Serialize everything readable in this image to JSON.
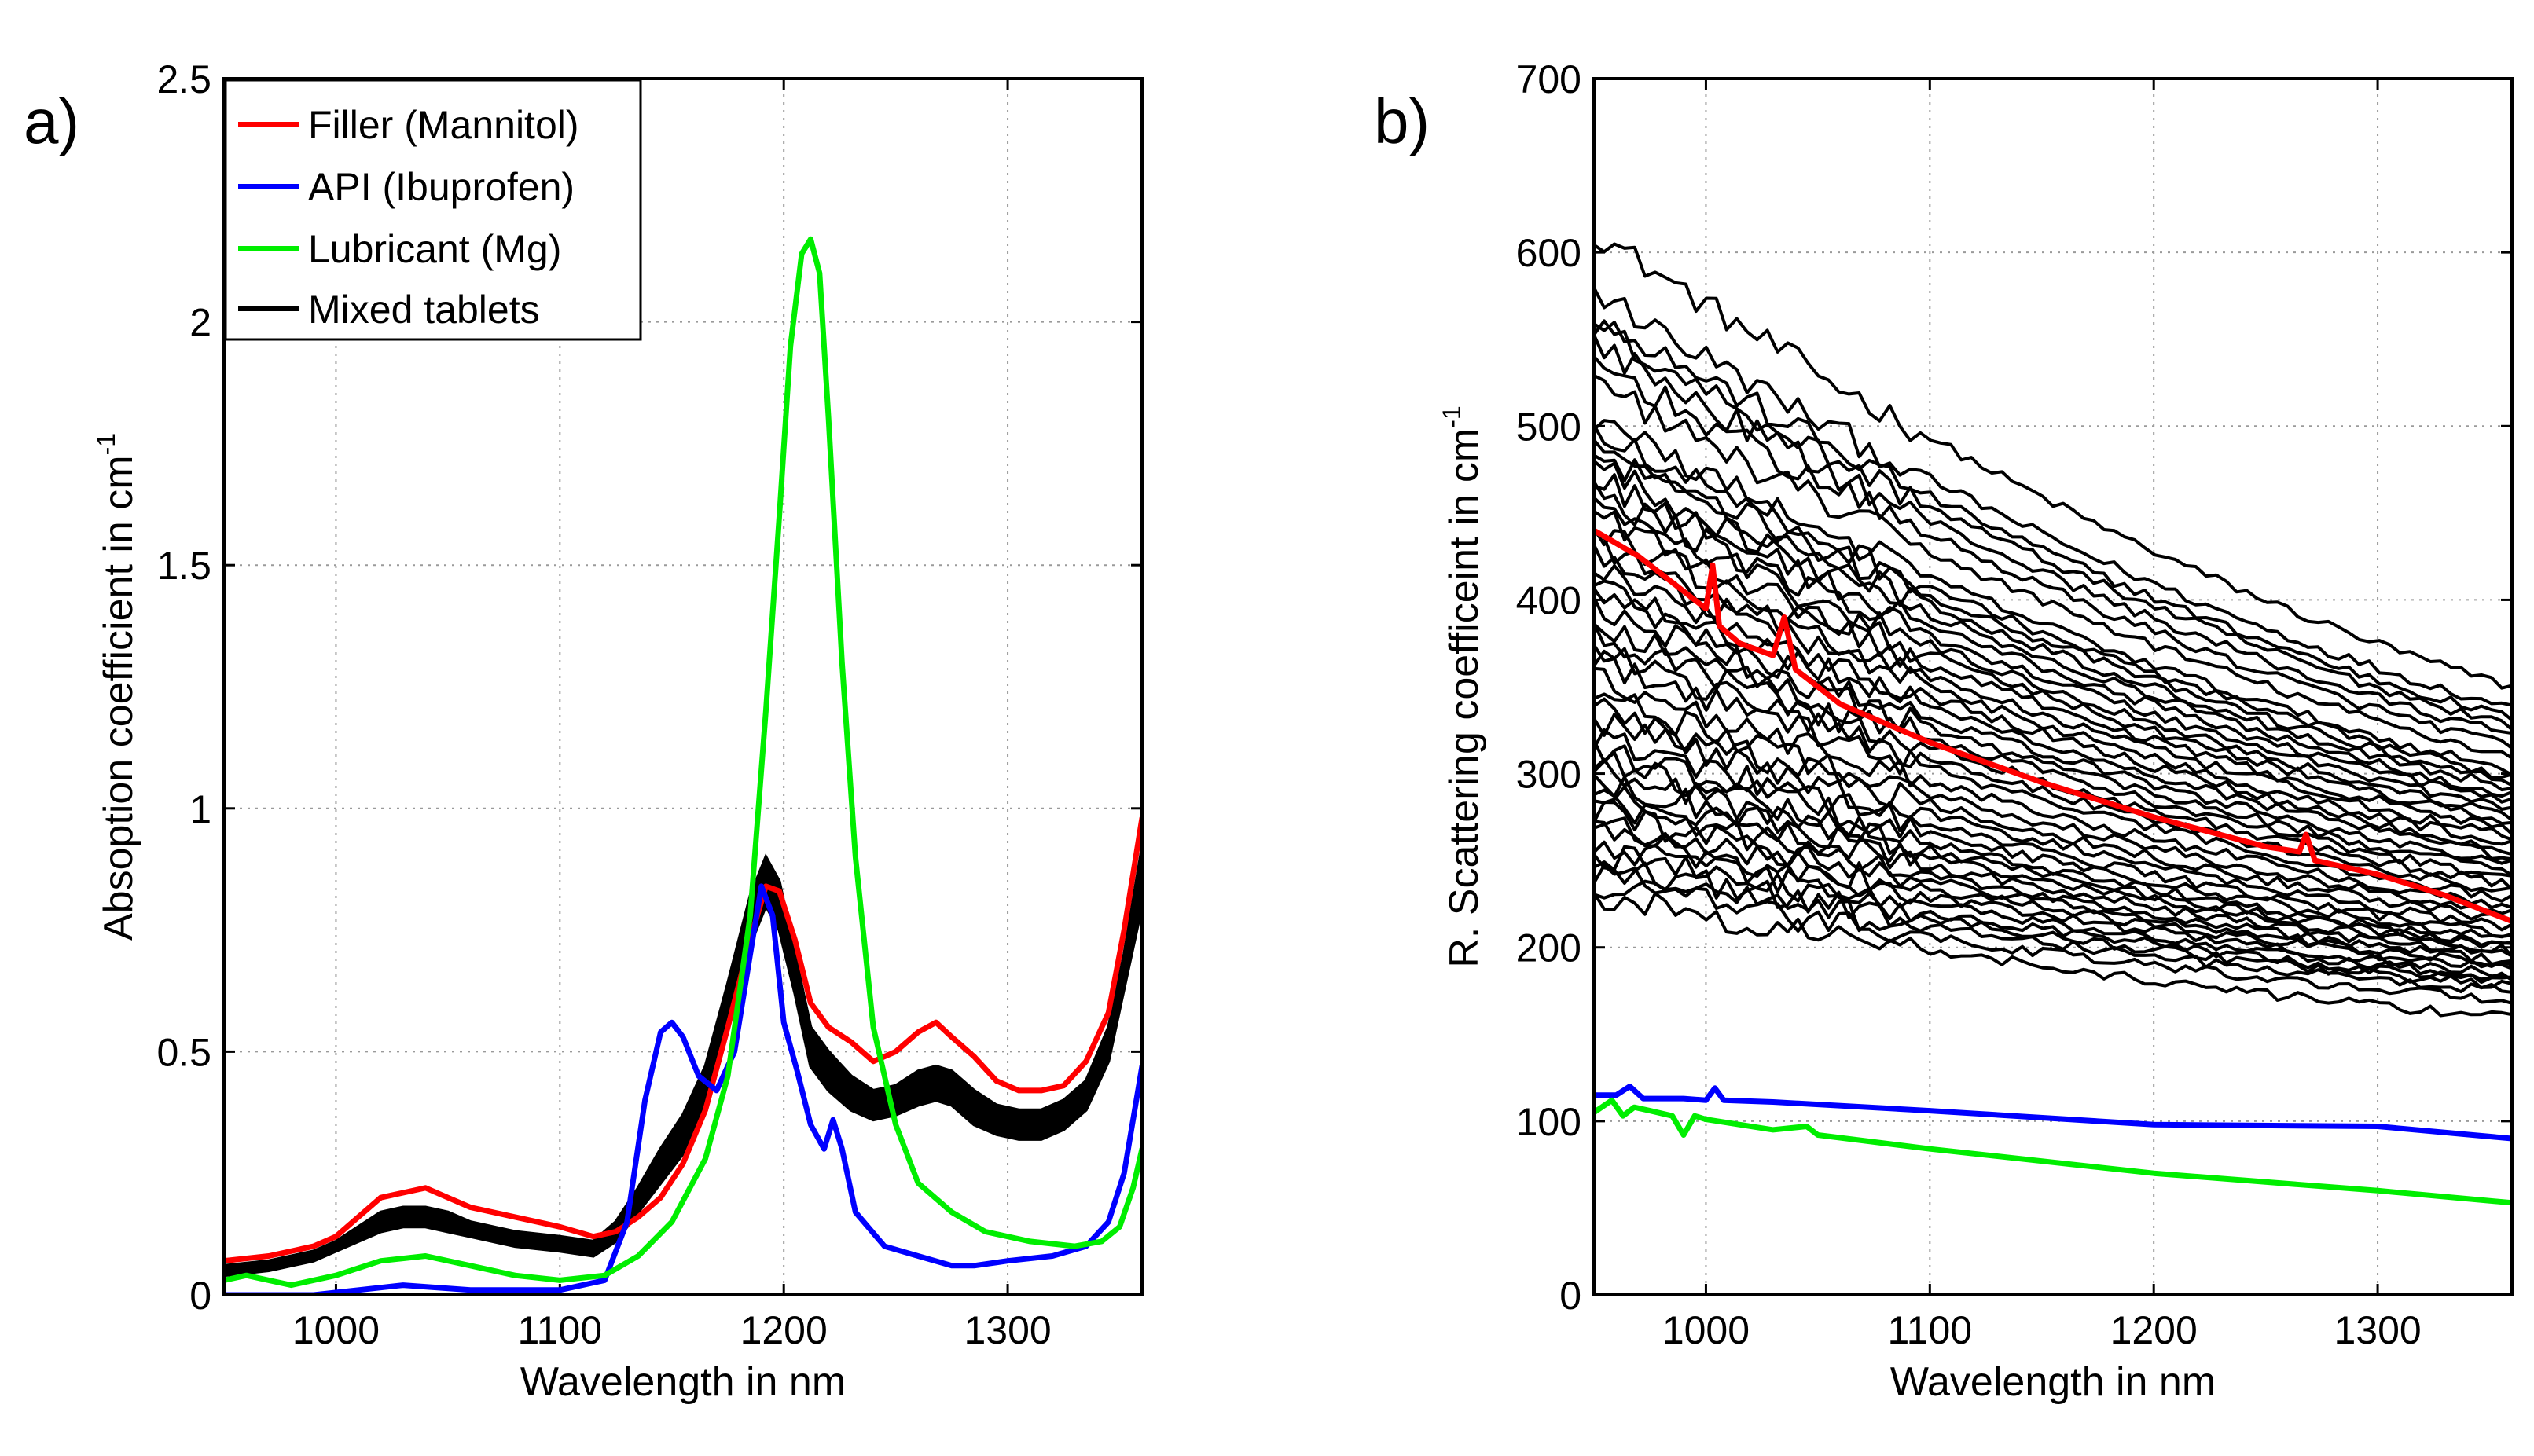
{
  "chart_data": [
    {
      "type": "line",
      "panel_label": "a)",
      "title": "",
      "xlabel": "Wavelength in nm",
      "ylabel": "Absoption coefficient in cm",
      "ylabel_superscript": "-1",
      "xlim": [
        950,
        1360
      ],
      "ylim": [
        0,
        2.5
      ],
      "grid": true,
      "legend_position": "top-left",
      "xticks": [
        1000,
        1100,
        1200,
        1300
      ],
      "xtick_labels": [
        "1000",
        "1100",
        "1200",
        "1300"
      ],
      "yticks": [
        0,
        0.5,
        1,
        1.5,
        2,
        2.5
      ],
      "ytick_labels": [
        "0",
        "0.5",
        "1",
        "1.5",
        "2",
        "2.5"
      ],
      "legend": [
        {
          "name": "Filler (Mannitol)",
          "color": "#ff0000"
        },
        {
          "name": "API (Ibuprofen)",
          "color": "#0000ff"
        },
        {
          "name": "Lubricant (Mg)",
          "color": "#00ee00"
        },
        {
          "name": "Mixed tablets",
          "color": "#000000"
        }
      ],
      "series": [
        {
          "name": "Filler (Mannitol)",
          "color": "#ff0000",
          "x": [
            950,
            970,
            990,
            1000,
            1010,
            1020,
            1030,
            1040,
            1050,
            1060,
            1080,
            1100,
            1115,
            1125,
            1135,
            1145,
            1155,
            1165,
            1175,
            1185,
            1192,
            1198,
            1205,
            1212,
            1220,
            1230,
            1240,
            1250,
            1260,
            1268,
            1275,
            1285,
            1295,
            1305,
            1315,
            1325,
            1335,
            1345,
            1352,
            1360
          ],
          "y": [
            0.07,
            0.08,
            0.1,
            0.12,
            0.16,
            0.2,
            0.21,
            0.22,
            0.2,
            0.18,
            0.16,
            0.14,
            0.12,
            0.13,
            0.16,
            0.2,
            0.27,
            0.38,
            0.55,
            0.73,
            0.84,
            0.83,
            0.73,
            0.6,
            0.55,
            0.52,
            0.48,
            0.5,
            0.54,
            0.56,
            0.53,
            0.49,
            0.44,
            0.42,
            0.42,
            0.43,
            0.48,
            0.58,
            0.75,
            0.98
          ]
        },
        {
          "name": "API (Ibuprofen)",
          "color": "#0000ff",
          "x": [
            950,
            990,
            1010,
            1030,
            1060,
            1100,
            1120,
            1130,
            1138,
            1145,
            1150,
            1155,
            1162,
            1170,
            1178,
            1185,
            1190,
            1195,
            1200,
            1206,
            1212,
            1218,
            1222,
            1226,
            1232,
            1245,
            1260,
            1275,
            1285,
            1300,
            1320,
            1335,
            1345,
            1352,
            1360
          ],
          "y": [
            0.0,
            0.0,
            0.01,
            0.02,
            0.01,
            0.01,
            0.03,
            0.15,
            0.4,
            0.54,
            0.56,
            0.53,
            0.45,
            0.42,
            0.5,
            0.7,
            0.84,
            0.78,
            0.56,
            0.46,
            0.35,
            0.3,
            0.36,
            0.3,
            0.17,
            0.1,
            0.08,
            0.06,
            0.06,
            0.07,
            0.08,
            0.1,
            0.15,
            0.25,
            0.47
          ]
        },
        {
          "name": "Lubricant (Mg)",
          "color": "#00ee00",
          "x": [
            950,
            960,
            970,
            980,
            1000,
            1020,
            1040,
            1060,
            1080,
            1100,
            1120,
            1135,
            1150,
            1165,
            1175,
            1185,
            1192,
            1198,
            1203,
            1208,
            1212,
            1216,
            1220,
            1226,
            1232,
            1240,
            1250,
            1260,
            1275,
            1290,
            1310,
            1330,
            1342,
            1350,
            1356,
            1360
          ],
          "y": [
            0.03,
            0.04,
            0.03,
            0.02,
            0.04,
            0.07,
            0.08,
            0.06,
            0.04,
            0.03,
            0.04,
            0.08,
            0.15,
            0.28,
            0.45,
            0.78,
            1.2,
            1.6,
            1.95,
            2.14,
            2.17,
            2.1,
            1.8,
            1.3,
            0.9,
            0.55,
            0.35,
            0.23,
            0.17,
            0.13,
            0.11,
            0.1,
            0.11,
            0.14,
            0.22,
            0.3
          ]
        },
        {
          "name": "Mixed tablets",
          "color": "#000000",
          "band": true,
          "x": [
            950,
            970,
            990,
            1000,
            1010,
            1020,
            1030,
            1040,
            1050,
            1060,
            1080,
            1100,
            1115,
            1125,
            1135,
            1145,
            1155,
            1165,
            1175,
            1185,
            1192,
            1198,
            1205,
            1212,
            1220,
            1230,
            1240,
            1250,
            1260,
            1268,
            1275,
            1285,
            1295,
            1305,
            1315,
            1325,
            1335,
            1345,
            1352,
            1360
          ],
          "y_upper": [
            0.06,
            0.07,
            0.09,
            0.11,
            0.14,
            0.17,
            0.18,
            0.18,
            0.17,
            0.15,
            0.13,
            0.12,
            0.11,
            0.15,
            0.22,
            0.3,
            0.37,
            0.47,
            0.64,
            0.82,
            0.9,
            0.85,
            0.7,
            0.55,
            0.5,
            0.45,
            0.42,
            0.43,
            0.46,
            0.47,
            0.46,
            0.42,
            0.39,
            0.38,
            0.38,
            0.4,
            0.44,
            0.55,
            0.7,
            0.92
          ],
          "y_lower": [
            0.04,
            0.05,
            0.07,
            0.09,
            0.11,
            0.13,
            0.14,
            0.14,
            0.13,
            0.12,
            0.1,
            0.09,
            0.08,
            0.11,
            0.17,
            0.23,
            0.29,
            0.4,
            0.56,
            0.72,
            0.8,
            0.75,
            0.62,
            0.47,
            0.42,
            0.38,
            0.36,
            0.37,
            0.39,
            0.4,
            0.39,
            0.35,
            0.33,
            0.32,
            0.32,
            0.34,
            0.38,
            0.48,
            0.63,
            0.8
          ]
        }
      ]
    },
    {
      "type": "line",
      "panel_label": "b)",
      "title": "",
      "xlabel": "Wavelength in nm",
      "ylabel": "R. Scattering coefficeint in cm",
      "ylabel_superscript": "-1",
      "xlim": [
        950,
        1360
      ],
      "ylim": [
        0,
        700
      ],
      "grid": true,
      "xticks": [
        1000,
        1100,
        1200,
        1300
      ],
      "xtick_labels": [
        "1000",
        "1100",
        "1200",
        "1300"
      ],
      "yticks": [
        0,
        100,
        200,
        300,
        400,
        500,
        600,
        700
      ],
      "ytick_labels": [
        "0",
        "100",
        "200",
        "300",
        "400",
        "500",
        "600",
        "700"
      ],
      "series": [
        {
          "name": "Filler (Mannitol)",
          "color": "#ff0000",
          "x": [
            950,
            970,
            990,
            1000,
            1003,
            1006,
            1015,
            1030,
            1035,
            1040,
            1060,
            1100,
            1150,
            1200,
            1250,
            1265,
            1268,
            1272,
            1300,
            1330,
            1360
          ],
          "y": [
            440,
            425,
            405,
            395,
            420,
            385,
            375,
            368,
            390,
            360,
            340,
            318,
            295,
            275,
            258,
            255,
            265,
            250,
            242,
            230,
            215
          ]
        },
        {
          "name": "API (Ibuprofen)",
          "color": "#0000ff",
          "x": [
            950,
            960,
            966,
            972,
            990,
            1000,
            1004,
            1008,
            1030,
            1100,
            1200,
            1300,
            1360
          ],
          "y": [
            115,
            115,
            120,
            113,
            113,
            112,
            119,
            112,
            111,
            106,
            98,
            97,
            90
          ]
        },
        {
          "name": "Lubricant (Mg)",
          "color": "#00ee00",
          "x": [
            950,
            958,
            963,
            968,
            975,
            985,
            990,
            995,
            1000,
            1030,
            1045,
            1050,
            1100,
            1200,
            1300,
            1360
          ],
          "y": [
            105,
            112,
            103,
            108,
            106,
            103,
            92,
            103,
            101,
            95,
            97,
            92,
            84,
            70,
            60,
            53
          ]
        },
        {
          "name": "Mixed tablets",
          "color": "#000000",
          "x": [
            950,
            1360
          ],
          "start_values": [
            612,
            578,
            565,
            558,
            548,
            538,
            525,
            505,
            498,
            492,
            485,
            478,
            470,
            462,
            455,
            448,
            440,
            432,
            425,
            418,
            410,
            402,
            395,
            388,
            380,
            372,
            365,
            355,
            345,
            338,
            330,
            322,
            315,
            308,
            302,
            296,
            290,
            284,
            278,
            272,
            266,
            260,
            254,
            248,
            242,
            236,
            230
          ],
          "end_values": [
            350,
            338,
            332,
            328,
            322,
            316,
            310,
            302,
            298,
            295,
            292,
            288,
            284,
            280,
            276,
            272,
            268,
            264,
            260,
            256,
            252,
            248,
            244,
            240,
            236,
            232,
            228,
            224,
            220,
            216,
            212,
            208,
            205,
            202,
            200,
            198,
            195,
            192,
            190,
            188,
            185,
            182,
            180,
            178,
            175,
            170,
            160
          ]
        }
      ]
    }
  ]
}
